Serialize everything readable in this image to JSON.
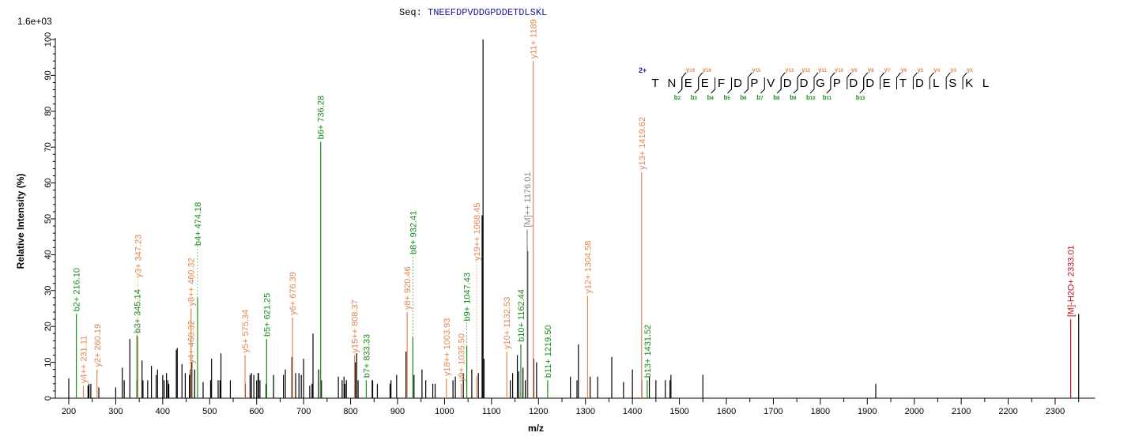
{
  "header": {
    "seq_label": "Seq:",
    "sequence": "TNEEFDPVDDGPDDETDLSKL",
    "max_intensity": "1.6e+03"
  },
  "colors": {
    "b_ion": "#1a8a1a",
    "y_ion": "#e08850",
    "precursor": "#888888",
    "water_loss": "#c0101a",
    "unassigned": "#000000",
    "sequence_text": "#1a1a9a",
    "charge": "#1a1ab0"
  },
  "chart_data": {
    "type": "bar",
    "xlabel": "m/z",
    "ylabel": "Relative  Intensity (%)",
    "xlim": [
      170,
      2385
    ],
    "ylim": [
      0,
      100
    ],
    "xticks": [
      200,
      300,
      400,
      500,
      600,
      700,
      800,
      900,
      1000,
      1100,
      1200,
      1300,
      1400,
      1500,
      1600,
      1700,
      1800,
      1900,
      2000,
      2100,
      2200,
      2300
    ],
    "yticks": [
      0,
      10,
      20,
      30,
      40,
      50,
      60,
      70,
      80,
      90,
      100
    ],
    "grid": false,
    "annotated_peaks": [
      {
        "mz": 216.1,
        "intensity": 23.5,
        "type": "b",
        "label": "b2+ 216.10"
      },
      {
        "mz": 231.11,
        "intensity": 3.5,
        "type": "y",
        "label": "y4++ 231.11"
      },
      {
        "mz": 260.19,
        "intensity": 8,
        "type": "y",
        "label": "y2+ 260.19"
      },
      {
        "mz": 345.14,
        "intensity": 17.5,
        "type": "b",
        "label": "b3+ 345.14"
      },
      {
        "mz": 347.23,
        "intensity": 17,
        "type": "y",
        "label": "y3+ 347.23"
      },
      {
        "mz": 460.32,
        "intensity": 9,
        "type": "y",
        "label": "y4+ 460.32"
      },
      {
        "mz": 460.32,
        "intensity": 25,
        "type": "y",
        "label": "y8++ 460.32"
      },
      {
        "mz": 474.18,
        "intensity": 28,
        "type": "b",
        "label": "b4+ 474.18"
      },
      {
        "mz": 575.34,
        "intensity": 12,
        "type": "y",
        "label": "y5+ 575.34"
      },
      {
        "mz": 621.25,
        "intensity": 16.5,
        "type": "b",
        "label": "b5+ 621.25"
      },
      {
        "mz": 676.39,
        "intensity": 22.5,
        "type": "y",
        "label": "y6+ 676.39"
      },
      {
        "mz": 736.28,
        "intensity": 71.5,
        "type": "b",
        "label": "b6+ 736.28"
      },
      {
        "mz": 808.37,
        "intensity": 12,
        "type": "y",
        "label": "y15++ 808.37"
      },
      {
        "mz": 833.33,
        "intensity": 5,
        "type": "b",
        "label": "b7+ 833.33"
      },
      {
        "mz": 920.46,
        "intensity": 24,
        "type": "y",
        "label": "y8+ 920.46"
      },
      {
        "mz": 932.41,
        "intensity": 17,
        "type": "b",
        "label": "b8+ 932.41"
      },
      {
        "mz": 1003.93,
        "intensity": 5.5,
        "type": "y",
        "label": "y18++ 1003.93"
      },
      {
        "mz": 1035.5,
        "intensity": 4,
        "type": "y",
        "label": "y9+ 1035.50"
      },
      {
        "mz": 1047.43,
        "intensity": 14.5,
        "type": "b",
        "label": "b9+ 1047.43"
      },
      {
        "mz": 1068.45,
        "intensity": 6,
        "type": "y",
        "label": "y19++ 1068.45"
      },
      {
        "mz": 1132.53,
        "intensity": 13,
        "type": "y",
        "label": "y10+ 1132.53"
      },
      {
        "mz": 1162.44,
        "intensity": 15,
        "type": "b",
        "label": "b10+ 1162.44"
      },
      {
        "mz": 1176.01,
        "intensity": 47,
        "type": "precursor",
        "label": "[M]++ 1176.01"
      },
      {
        "mz": 1189,
        "intensity": 94,
        "type": "y",
        "label": "y11+ 1189"
      },
      {
        "mz": 1219.5,
        "intensity": 5,
        "type": "b",
        "label": "b11+ 1219.50"
      },
      {
        "mz": 1304.58,
        "intensity": 28.5,
        "type": "y",
        "label": "y12+ 1304.58"
      },
      {
        "mz": 1419.62,
        "intensity": 63,
        "type": "y",
        "label": "y13+ 1419.62"
      },
      {
        "mz": 1431.52,
        "intensity": 5,
        "type": "b",
        "label": "b13+ 1431.52"
      },
      {
        "mz": 2333.01,
        "intensity": 22,
        "type": "water_loss",
        "label": "[M]-H2O+ 2333.01"
      }
    ],
    "unassigned_peaks": [
      [
        200,
        5.5
      ],
      [
        241,
        3.5
      ],
      [
        243,
        4
      ],
      [
        247,
        4
      ],
      [
        264,
        3
      ],
      [
        300,
        3
      ],
      [
        314,
        8.5
      ],
      [
        318,
        5
      ],
      [
        330,
        16.5
      ],
      [
        345,
        5
      ],
      [
        356,
        10.5
      ],
      [
        358,
        5
      ],
      [
        368,
        5
      ],
      [
        376,
        9
      ],
      [
        386,
        6.5
      ],
      [
        389,
        8
      ],
      [
        400,
        6.5
      ],
      [
        403,
        5
      ],
      [
        408,
        7
      ],
      [
        411,
        5
      ],
      [
        413,
        4
      ],
      [
        429,
        13.5
      ],
      [
        431,
        14
      ],
      [
        441,
        9.5
      ],
      [
        448,
        7
      ],
      [
        457,
        6.5
      ],
      [
        459,
        8
      ],
      [
        462,
        10
      ],
      [
        468,
        8
      ],
      [
        486,
        4.5
      ],
      [
        502,
        5
      ],
      [
        504,
        11
      ],
      [
        518,
        5
      ],
      [
        522,
        5
      ],
      [
        524,
        12.5
      ],
      [
        544,
        5
      ],
      [
        576,
        4
      ],
      [
        586,
        6.5
      ],
      [
        589,
        7
      ],
      [
        594,
        6.5
      ],
      [
        600,
        5
      ],
      [
        603,
        7
      ],
      [
        604,
        7
      ],
      [
        607,
        5
      ],
      [
        620,
        4
      ],
      [
        636,
        6.5
      ],
      [
        657,
        6.5
      ],
      [
        661,
        8
      ],
      [
        675,
        11.5
      ],
      [
        683,
        7
      ],
      [
        690,
        7
      ],
      [
        695,
        6.5
      ],
      [
        700,
        11
      ],
      [
        713,
        3.5
      ],
      [
        718,
        4
      ],
      [
        720,
        18
      ],
      [
        732,
        8
      ],
      [
        738,
        5
      ],
      [
        774,
        6
      ],
      [
        782,
        5
      ],
      [
        786,
        6
      ],
      [
        788,
        4
      ],
      [
        791,
        5
      ],
      [
        810,
        10
      ],
      [
        813,
        12.5
      ],
      [
        816,
        5
      ],
      [
        846,
        5
      ],
      [
        847,
        5
      ],
      [
        857,
        4
      ],
      [
        884,
        4
      ],
      [
        886,
        5
      ],
      [
        898,
        6.5
      ],
      [
        918,
        13
      ],
      [
        935,
        6.5
      ],
      [
        952,
        8
      ],
      [
        960,
        5
      ],
      [
        975,
        4
      ],
      [
        980,
        4
      ],
      [
        1018,
        5
      ],
      [
        1023,
        6
      ],
      [
        1040,
        7
      ],
      [
        1058,
        8
      ],
      [
        1072,
        7
      ],
      [
        1080,
        51
      ],
      [
        1082,
        100
      ],
      [
        1084,
        11
      ],
      [
        1140,
        5
      ],
      [
        1145,
        7
      ],
      [
        1155,
        12
      ],
      [
        1158,
        7.5
      ],
      [
        1167,
        8.5
      ],
      [
        1172,
        5
      ],
      [
        1177,
        41
      ],
      [
        1190,
        11
      ],
      [
        1196,
        10
      ],
      [
        1268,
        6
      ],
      [
        1282,
        5
      ],
      [
        1285,
        15
      ],
      [
        1310,
        6
      ],
      [
        1326,
        6
      ],
      [
        1356,
        11.5
      ],
      [
        1381,
        4.5
      ],
      [
        1400,
        8
      ],
      [
        1420,
        5
      ],
      [
        1436,
        6
      ],
      [
        1450,
        5
      ],
      [
        1470,
        5
      ],
      [
        1480,
        5
      ],
      [
        1482,
        6.5
      ],
      [
        1550,
        6.5
      ],
      [
        1918,
        4
      ],
      [
        2350,
        23.5
      ]
    ],
    "fragment_map": {
      "charge": "2+",
      "residues": [
        "T",
        "N",
        "E",
        "E",
        "F",
        "D",
        "P",
        "V",
        "D",
        "D",
        "G",
        "P",
        "D",
        "D",
        "E",
        "T",
        "D",
        "L",
        "S",
        "K",
        "L"
      ],
      "y_ions": [
        {
          "before": 2,
          "label": "y19"
        },
        {
          "before": 3,
          "label": "y18"
        },
        {
          "before": 6,
          "label": "y15"
        },
        {
          "before": 8,
          "label": "y13"
        },
        {
          "before": 9,
          "label": "y12"
        },
        {
          "before": 10,
          "label": "y11"
        },
        {
          "before": 11,
          "label": "y10"
        },
        {
          "before": 12,
          "label": "y9"
        },
        {
          "before": 13,
          "label": "y8"
        },
        {
          "before": 14,
          "label": "y7"
        },
        {
          "before": 15,
          "label": "y6"
        },
        {
          "before": 16,
          "label": "y5"
        },
        {
          "before": 17,
          "label": "y4"
        },
        {
          "before": 18,
          "label": "y3"
        },
        {
          "before": 19,
          "label": "y2"
        }
      ],
      "b_ions": [
        {
          "before": 2,
          "label": "b2"
        },
        {
          "before": 3,
          "label": "b3"
        },
        {
          "before": 4,
          "label": "b4"
        },
        {
          "before": 5,
          "label": "b5"
        },
        {
          "before": 6,
          "label": "b6"
        },
        {
          "before": 7,
          "label": "b7"
        },
        {
          "before": 8,
          "label": "b8"
        },
        {
          "before": 9,
          "label": "b9"
        },
        {
          "before": 10,
          "label": "b10"
        },
        {
          "before": 11,
          "label": "b11"
        },
        {
          "before": 13,
          "label": "b13"
        }
      ]
    }
  }
}
